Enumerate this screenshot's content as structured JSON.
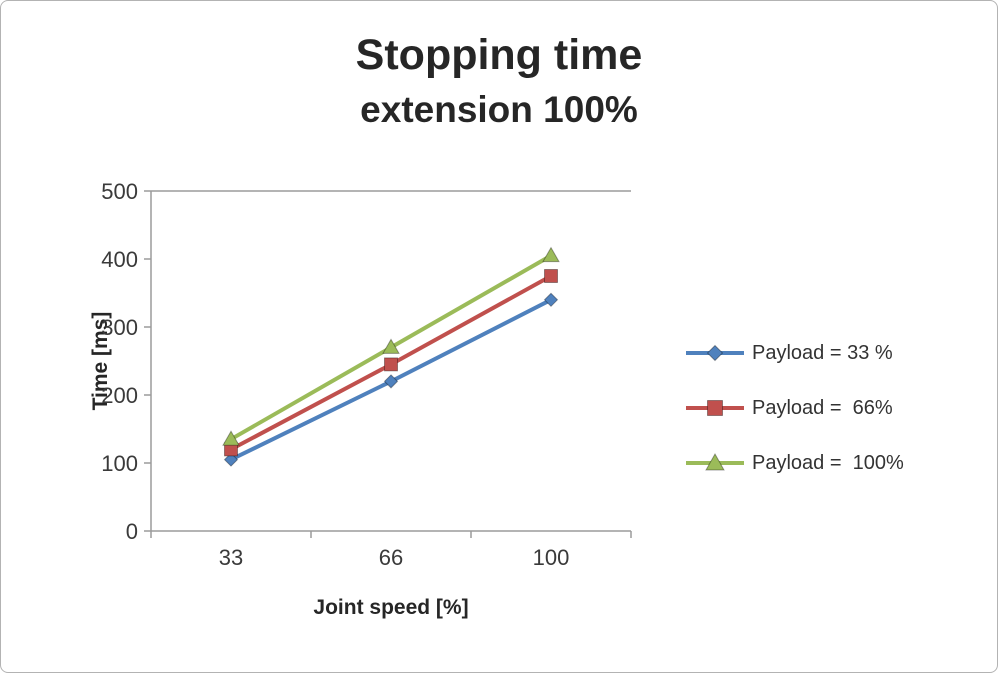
{
  "chart_data": {
    "type": "line",
    "title": "Stopping time",
    "subtitle": "extension 100%",
    "xlabel": "Joint speed [%]",
    "ylabel": "Time [ms]",
    "categories": [
      "33",
      "66",
      "100"
    ],
    "ylim": [
      0,
      500
    ],
    "ytick_step": 100,
    "grid": false,
    "legend_position": "right",
    "series": [
      {
        "name": "Payload = 33 %",
        "color": "#4F81BD",
        "marker": "diamond",
        "values": [
          105,
          220,
          340
        ]
      },
      {
        "name": "Payload =  66%",
        "color": "#C0504D",
        "marker": "square",
        "values": [
          120,
          245,
          375
        ]
      },
      {
        "name": "Payload =  100%",
        "color": "#9BBB59",
        "marker": "triangle",
        "values": [
          135,
          270,
          405
        ]
      }
    ]
  }
}
